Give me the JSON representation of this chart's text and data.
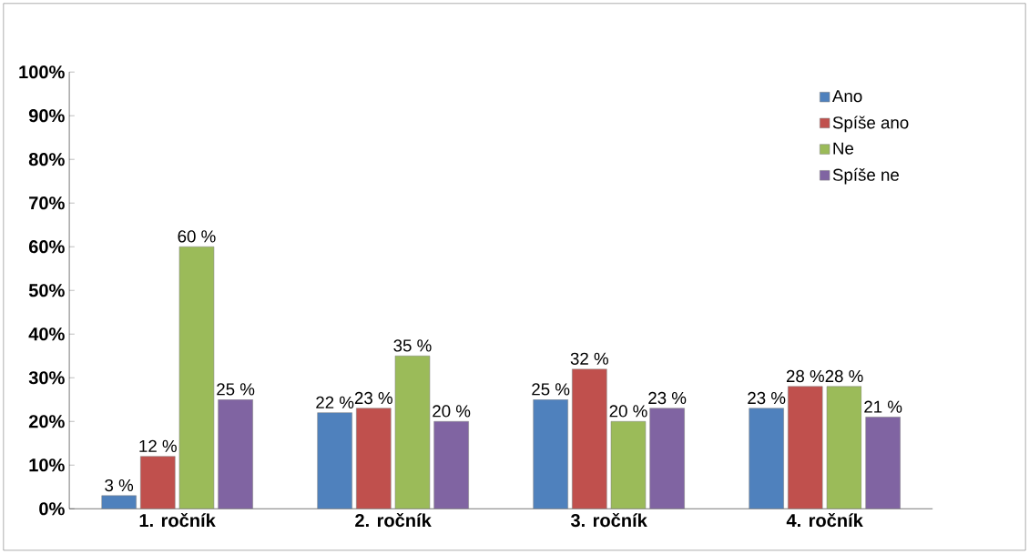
{
  "chart_data": {
    "type": "bar",
    "categories": [
      "1. ročník",
      "2. ročník",
      "3. ročník",
      "4. ročník"
    ],
    "series": [
      {
        "name": "Ano",
        "color": "#4f81bd",
        "values": [
          3,
          22,
          25,
          23
        ],
        "value_labels": [
          "3 %",
          "22 %",
          "25 %",
          "23 %"
        ]
      },
      {
        "name": "Spíše ano",
        "color": "#c0504d",
        "values": [
          12,
          23,
          32,
          28
        ],
        "value_labels": [
          "12 %",
          "23 %",
          "32 %",
          "28 %"
        ]
      },
      {
        "name": "Ne",
        "color": "#9bbb59",
        "values": [
          60,
          35,
          20,
          28
        ],
        "value_labels": [
          "60 %",
          "35 %",
          "20 %",
          "28 %"
        ]
      },
      {
        "name": "Spíše ne",
        "color": "#8064a2",
        "values": [
          25,
          20,
          23,
          21
        ],
        "value_labels": [
          "25 %",
          "20 %",
          "23 %",
          "21 %"
        ]
      }
    ],
    "ylim": [
      0,
      100
    ],
    "yticks": [
      {
        "value": 0,
        "label": "0%"
      },
      {
        "value": 10,
        "label": "10%"
      },
      {
        "value": 20,
        "label": "20%"
      },
      {
        "value": 30,
        "label": "30%"
      },
      {
        "value": 40,
        "label": "40%"
      },
      {
        "value": 50,
        "label": "50%"
      },
      {
        "value": 60,
        "label": "60%"
      },
      {
        "value": 70,
        "label": "70%"
      },
      {
        "value": 80,
        "label": "80%"
      },
      {
        "value": 90,
        "label": "90%"
      },
      {
        "value": 100,
        "label": "100%"
      }
    ],
    "legend": "top right",
    "grid": false
  }
}
